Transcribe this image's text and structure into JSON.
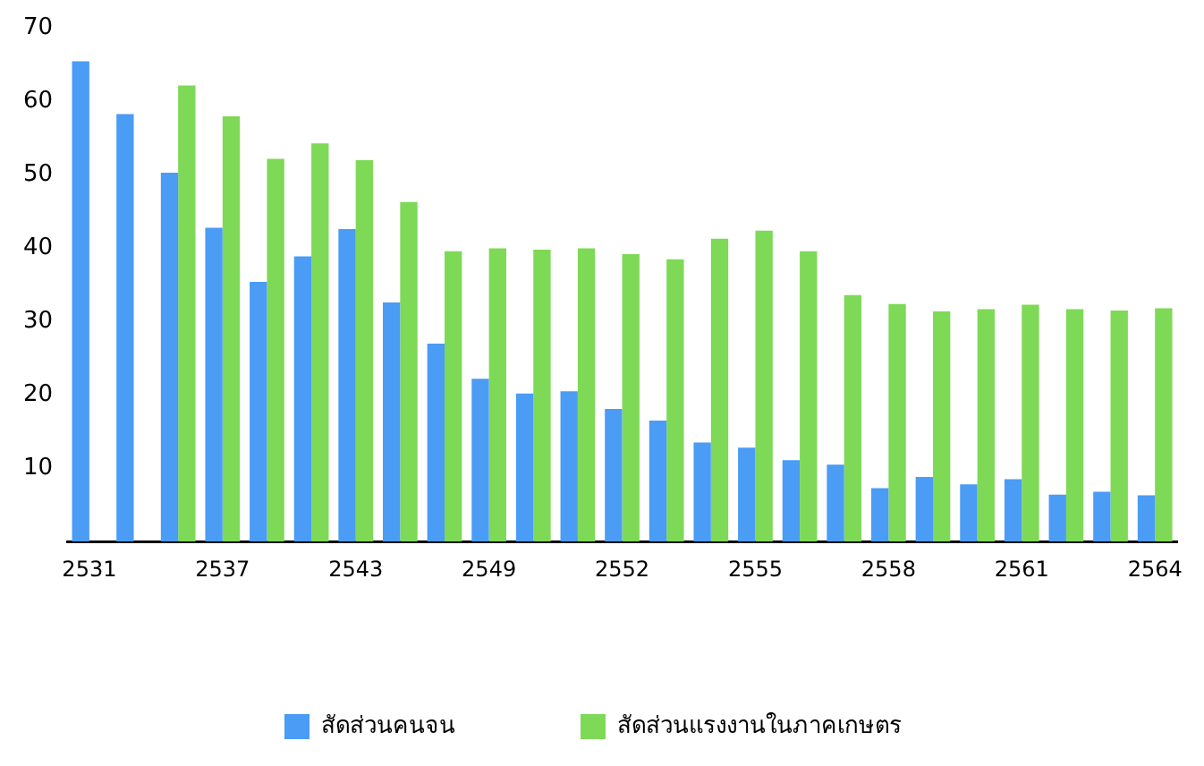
{
  "chart_data": {
    "type": "bar",
    "categories": [
      "2531",
      null,
      null,
      "2537",
      null,
      null,
      "2543",
      null,
      null,
      "2549",
      null,
      null,
      "2552",
      null,
      null,
      "2555",
      null,
      null,
      "2558",
      null,
      null,
      "2561",
      null,
      null,
      "2564"
    ],
    "series": [
      {
        "name": "สัดส่วนคนจน",
        "color": "#4a9cf5",
        "values": [
          65.5,
          58.3,
          50.3,
          42.8,
          35.4,
          38.9,
          42.6,
          32.6,
          27.0,
          22.2,
          20.2,
          20.5,
          18.1,
          16.5,
          13.5,
          12.8,
          11.1,
          10.5,
          7.3,
          8.8,
          7.8,
          8.5,
          6.4,
          6.8,
          6.3
        ]
      },
      {
        "name": "สัดส่วนแรงงานในภาคเกษตร",
        "color": "#7ed957",
        "values": [
          null,
          null,
          62.2,
          58.0,
          52.2,
          54.3,
          52.0,
          46.3,
          39.6,
          40.0,
          39.8,
          40.0,
          39.2,
          38.5,
          41.3,
          42.4,
          39.6,
          33.6,
          32.4,
          31.4,
          31.7,
          32.3,
          31.7,
          31.5,
          31.8
        ]
      }
    ],
    "ylim": [
      0,
      70
    ],
    "yticks": [
      10,
      20,
      30,
      40,
      50,
      60,
      70
    ],
    "grid": false,
    "legend": "bottom"
  }
}
